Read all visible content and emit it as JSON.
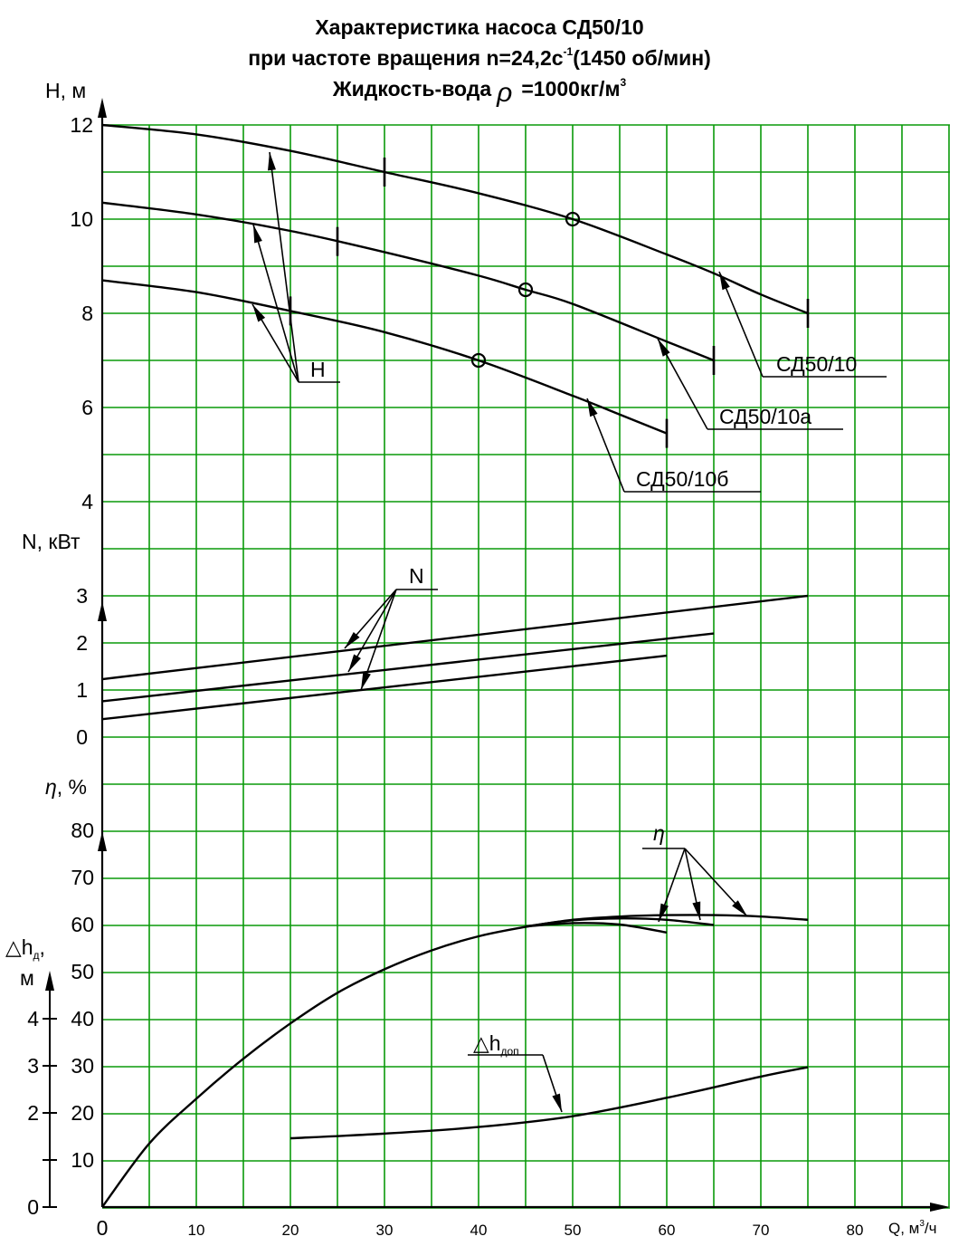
{
  "chart_data": {
    "type": "line",
    "title_lines": [
      "Характеристика насоса СД50/10",
      "при частоте вращения n=24,2с",
      "Жидкость-вода",
      "=1000кг/м"
    ],
    "title_parts": {
      "line2_sup": "-1",
      "line2_tail": "(1450 об/мин)",
      "rho_symbol": "ρ",
      "line3_sup": "3"
    },
    "x_axis": {
      "label": "Q, м",
      "label_sup": "3",
      "label_tail": "/ч",
      "range": [
        0,
        90
      ],
      "ticks": [
        "0",
        "10",
        "20",
        "30",
        "40",
        "50",
        "60",
        "70",
        "80"
      ]
    },
    "grid": true,
    "grid_color": "#0a9a0a",
    "axes": {
      "H": {
        "label": "H, м",
        "range": [
          4,
          12
        ],
        "ticks": [
          "12",
          "10",
          "8",
          "6",
          "4"
        ]
      },
      "N": {
        "label": "N, кВт",
        "range": [
          0,
          3
        ],
        "ticks": [
          "3",
          "2",
          "1",
          "0"
        ]
      },
      "eta": {
        "label_symbol": "η",
        "label_tail": ", %",
        "range": [
          0,
          80
        ],
        "ticks": [
          "80",
          "70",
          "60",
          "50",
          "40",
          "30",
          "20",
          "10"
        ]
      },
      "dh": {
        "label": "△h",
        "label_sub": "д",
        "label_tail": ",",
        "label_line2": "м",
        "range": [
          0,
          4
        ],
        "ticks": [
          "4",
          "3",
          "2",
          "0"
        ]
      }
    },
    "series": [
      {
        "name": "СД50/10",
        "group": "H",
        "x": [
          0,
          10,
          20,
          30,
          40,
          50,
          60,
          65,
          70,
          75
        ],
        "y": [
          12.0,
          11.8,
          11.45,
          11.0,
          10.55,
          10.0,
          9.25,
          8.85,
          8.4,
          8.0
        ],
        "marker_x": 50,
        "marker_y": 10.0,
        "ticks_x": [
          30,
          75
        ]
      },
      {
        "name": "СД50/10а",
        "group": "H",
        "x": [
          0,
          10,
          20,
          30,
          40,
          45,
          50,
          60,
          65
        ],
        "y": [
          10.35,
          10.1,
          9.75,
          9.3,
          8.8,
          8.5,
          8.2,
          7.4,
          7.0
        ],
        "marker_x": 45,
        "marker_y": 8.5,
        "ticks_x": [
          25,
          65
        ]
      },
      {
        "name": "СД50/10б",
        "group": "H",
        "x": [
          0,
          10,
          20,
          30,
          40,
          50,
          55,
          60
        ],
        "y": [
          8.7,
          8.45,
          8.05,
          7.6,
          7.0,
          6.25,
          5.85,
          5.45
        ],
        "marker_x": 40,
        "marker_y": 7.0,
        "ticks_x": [
          20,
          60
        ]
      },
      {
        "name": "N",
        "group": "N",
        "x": [
          0,
          75
        ],
        "y": [
          1.23,
          3.0
        ]
      },
      {
        "name": "N",
        "group": "N",
        "x": [
          0,
          65
        ],
        "y": [
          0.76,
          2.2
        ]
      },
      {
        "name": "N",
        "group": "N",
        "x": [
          0,
          60
        ],
        "y": [
          0.38,
          1.73
        ]
      },
      {
        "name": "η",
        "group": "eta",
        "x": [
          0,
          5,
          10,
          15,
          20,
          25,
          30,
          35,
          40,
          45,
          50,
          55,
          60,
          65,
          70,
          75
        ],
        "y": [
          0,
          13.5,
          23,
          31.5,
          39,
          45.5,
          50.5,
          54.5,
          57.5,
          59.5,
          61,
          61.7,
          62,
          62,
          61.7,
          61
        ]
      },
      {
        "name": "η",
        "group": "eta",
        "x": [
          45,
          50,
          55,
          60,
          65
        ],
        "y": [
          59.6,
          60.9,
          61.3,
          61.0,
          59.9
        ]
      },
      {
        "name": "η",
        "group": "eta",
        "x": [
          45,
          50,
          55,
          60
        ],
        "y": [
          59.6,
          60.3,
          60.0,
          58.3
        ]
      },
      {
        "name": "△h",
        "name_sub": "доп",
        "group": "dh",
        "x": [
          20,
          30,
          40,
          50,
          60,
          70,
          75
        ],
        "y": [
          1.46,
          1.56,
          1.7,
          1.93,
          2.32,
          2.77,
          2.97
        ]
      }
    ],
    "annotations": [
      {
        "text": "H"
      },
      {
        "text": "N"
      },
      {
        "text": "η"
      },
      {
        "text": "СД50/10"
      },
      {
        "text": "СД50/10а"
      },
      {
        "text": "СД50/10б"
      },
      {
        "text": "△h",
        "sub": "доп"
      }
    ]
  }
}
